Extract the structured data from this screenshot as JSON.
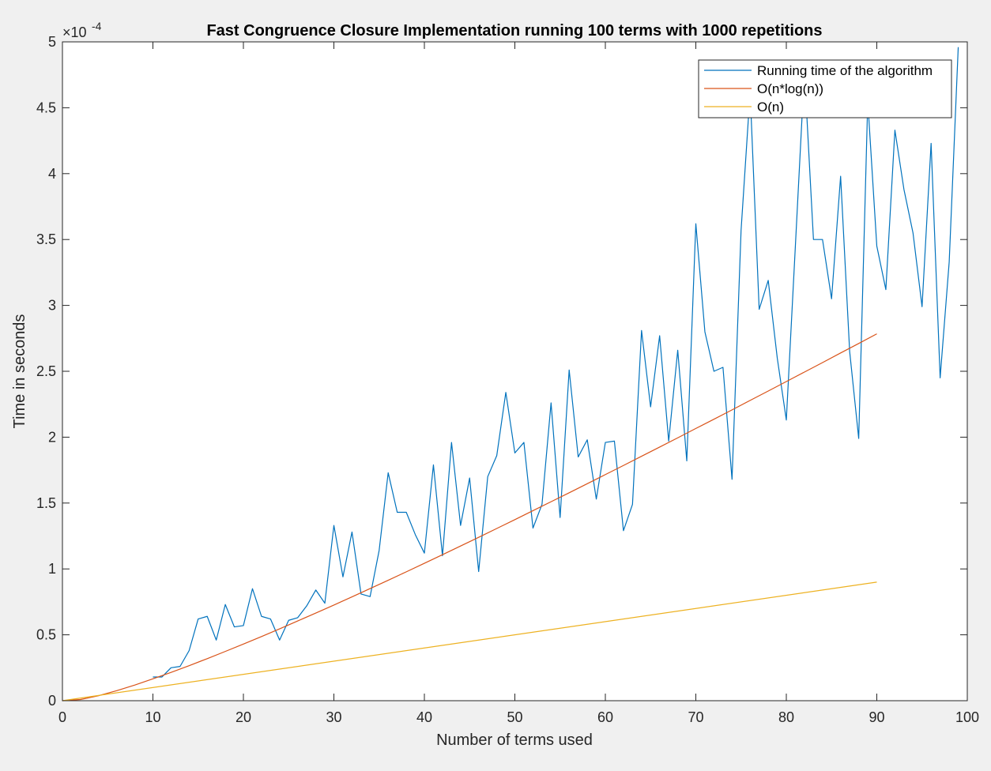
{
  "chart_data": {
    "type": "line",
    "title": "Fast Congruence Closure Implementation running 100 terms with 1000 repetitions",
    "xlabel": "Number of terms used",
    "ylabel": "Time in seconds",
    "y_exponent_label": "×10",
    "y_exponent_power": "-4",
    "xlim": [
      0,
      100
    ],
    "ylim": [
      0,
      5
    ],
    "xticks": [
      0,
      10,
      20,
      30,
      40,
      50,
      60,
      70,
      80,
      90,
      100
    ],
    "yticks": [
      0,
      0.5,
      1,
      1.5,
      2,
      2.5,
      3,
      3.5,
      4,
      4.5,
      5
    ],
    "x_tick_labels": [
      "0",
      "10",
      "20",
      "30",
      "40",
      "50",
      "60",
      "70",
      "80",
      "90",
      "100"
    ],
    "y_tick_labels": [
      "0",
      "0.5",
      "1",
      "1.5",
      "2",
      "2.5",
      "3",
      "3.5",
      "4",
      "4.5",
      "5"
    ],
    "y_unit_scale": 0.0001,
    "grid": false,
    "legend_position": "top-right",
    "series": [
      {
        "name": "Running time of the algorithm",
        "color": "#0072BD",
        "x": [
          10,
          11,
          12,
          13,
          14,
          15,
          16,
          17,
          18,
          19,
          20,
          21,
          22,
          23,
          24,
          25,
          26,
          27,
          28,
          29,
          30,
          31,
          32,
          33,
          34,
          35,
          36,
          37,
          38,
          39,
          40,
          41,
          42,
          43,
          44,
          45,
          46,
          47,
          48,
          49,
          50,
          51,
          52,
          53,
          54,
          55,
          56,
          57,
          58,
          59,
          60,
          61,
          62,
          63,
          64,
          65,
          66,
          67,
          68,
          69,
          70,
          71,
          72,
          73,
          74,
          75,
          76,
          77,
          78,
          79,
          80,
          81,
          82,
          83,
          84,
          85,
          86,
          87,
          88,
          89,
          90,
          91,
          92,
          93,
          94,
          95,
          96,
          97,
          98,
          99
        ],
        "values": [
          0.18,
          0.18,
          0.25,
          0.26,
          0.38,
          0.62,
          0.64,
          0.46,
          0.73,
          0.56,
          0.57,
          0.85,
          0.64,
          0.62,
          0.46,
          0.61,
          0.63,
          0.72,
          0.84,
          0.74,
          1.33,
          0.94,
          1.28,
          0.81,
          0.79,
          1.14,
          1.73,
          1.43,
          1.43,
          1.26,
          1.12,
          1.79,
          1.1,
          1.96,
          1.33,
          1.69,
          0.98,
          1.7,
          1.86,
          2.34,
          1.88,
          1.96,
          1.31,
          1.49,
          2.26,
          1.39,
          2.51,
          1.85,
          1.98,
          1.53,
          1.96,
          1.97,
          1.29,
          1.49,
          2.81,
          2.23,
          2.77,
          1.97,
          2.66,
          1.82,
          3.62,
          2.8,
          2.5,
          2.53,
          1.68,
          3.57,
          4.62,
          2.97,
          3.19,
          2.6,
          2.13,
          3.45,
          4.78,
          3.5,
          3.5,
          3.05,
          3.98,
          2.65,
          1.99,
          4.55,
          3.45,
          3.12,
          4.33,
          3.88,
          3.55,
          2.99,
          4.23,
          2.45,
          3.33,
          4.96
        ]
      },
      {
        "name": "O(n*log(n))",
        "color": "#D95319",
        "x": [
          0,
          2,
          4,
          6,
          8,
          10,
          12,
          14,
          16,
          18,
          20,
          22,
          24,
          26,
          28,
          30,
          32,
          34,
          36,
          38,
          40,
          42,
          44,
          46,
          48,
          50,
          52,
          54,
          56,
          58,
          60,
          62,
          64,
          66,
          68,
          70,
          72,
          74,
          76,
          78,
          80,
          82,
          84,
          86,
          88,
          90
        ],
        "values": [
          0,
          0.009,
          0.038,
          0.076,
          0.119,
          0.166,
          0.215,
          0.266,
          0.319,
          0.374,
          0.43,
          0.487,
          0.545,
          0.605,
          0.665,
          0.726,
          0.788,
          0.851,
          0.914,
          0.978,
          1.043,
          1.108,
          1.174,
          1.24,
          1.307,
          1.374,
          1.442,
          1.51,
          1.578,
          1.647,
          1.716,
          1.785,
          1.855,
          1.925,
          1.995,
          2.066,
          2.136,
          2.207,
          2.279,
          2.35,
          2.422,
          2.494,
          2.566,
          2.639,
          2.711,
          2.784
        ]
      },
      {
        "name": "O(n)",
        "color": "#EDB120",
        "x": [
          0,
          90
        ],
        "values": [
          0,
          0.9
        ]
      }
    ]
  }
}
